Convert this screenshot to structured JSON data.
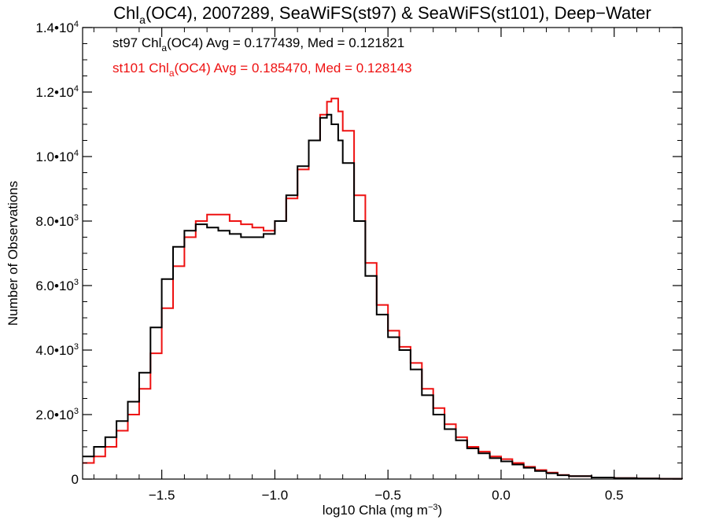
{
  "chart_data": {
    "type": "line",
    "title": {
      "pre": "Chl",
      "sub": "a",
      "post": "(OC4), 2007289, SeaWiFS(st97) & SeaWiFS(st101), Deep−Water"
    },
    "xlabel": {
      "pre": "log10 Chla (mg m",
      "sup": "−3",
      "post": ")"
    },
    "ylabel": "Number of Observations",
    "xlim": [
      -1.85,
      0.8
    ],
    "ylim": [
      0,
      14000
    ],
    "x_ticks": [
      {
        "value": -1.5,
        "label": "−1.5"
      },
      {
        "value": -1.0,
        "label": "−1.0"
      },
      {
        "value": -0.5,
        "label": "−0.5"
      },
      {
        "value": 0.0,
        "label": "0.0"
      },
      {
        "value": 0.5,
        "label": "0.5"
      }
    ],
    "y_ticks": [
      {
        "value": 0,
        "mant": "0",
        "exp": ""
      },
      {
        "value": 2000,
        "mant": "2.0•10",
        "exp": "3"
      },
      {
        "value": 4000,
        "mant": "4.0•10",
        "exp": "3"
      },
      {
        "value": 6000,
        "mant": "6.0•10",
        "exp": "3"
      },
      {
        "value": 8000,
        "mant": "8.0•10",
        "exp": "3"
      },
      {
        "value": 10000,
        "mant": "1.0•10",
        "exp": "4"
      },
      {
        "value": 12000,
        "mant": "1.2•10",
        "exp": "4"
      },
      {
        "value": 14000,
        "mant": "1.4•10",
        "exp": "4"
      }
    ],
    "legend": [
      {
        "pre": "st97 Chl",
        "sub": "a",
        "post": "(OC4) Avg = 0.177439, Med = 0.121821",
        "color": "#000000"
      },
      {
        "pre": "st101 Chl",
        "sub": "a",
        "post": "(OC4) Avg = 0.185470, Med = 0.128143",
        "color": "#ee1111"
      }
    ],
    "legend_position": "top-left",
    "grid": false,
    "series": [
      {
        "color": "#000000",
        "x": [
          -1.85,
          -1.8,
          -1.75,
          -1.7,
          -1.65,
          -1.6,
          -1.55,
          -1.5,
          -1.45,
          -1.4,
          -1.35,
          -1.3,
          -1.25,
          -1.2,
          -1.15,
          -1.1,
          -1.05,
          -1.0,
          -0.95,
          -0.9,
          -0.85,
          -0.8,
          -0.77,
          -0.75,
          -0.72,
          -0.7,
          -0.65,
          -0.6,
          -0.55,
          -0.5,
          -0.45,
          -0.4,
          -0.35,
          -0.3,
          -0.25,
          -0.2,
          -0.15,
          -0.1,
          -0.05,
          0.0,
          0.05,
          0.1,
          0.15,
          0.2,
          0.25,
          0.3,
          0.4,
          0.5,
          0.6,
          0.7,
          0.8
        ],
        "y": [
          700,
          1000,
          1300,
          1800,
          2400,
          3300,
          4700,
          6200,
          7200,
          7700,
          7900,
          7800,
          7700,
          7600,
          7500,
          7500,
          7600,
          8000,
          8800,
          9700,
          10500,
          11200,
          11300,
          11000,
          10500,
          9800,
          8000,
          6300,
          5100,
          4400,
          4000,
          3400,
          2600,
          2000,
          1550,
          1200,
          950,
          800,
          650,
          550,
          450,
          350,
          250,
          180,
          120,
          90,
          50,
          30,
          20,
          10,
          5
        ]
      },
      {
        "color": "#ee1111",
        "x": [
          -1.85,
          -1.8,
          -1.75,
          -1.7,
          -1.65,
          -1.6,
          -1.55,
          -1.5,
          -1.45,
          -1.4,
          -1.35,
          -1.3,
          -1.25,
          -1.2,
          -1.15,
          -1.1,
          -1.05,
          -1.0,
          -0.95,
          -0.9,
          -0.85,
          -0.8,
          -0.77,
          -0.75,
          -0.72,
          -0.7,
          -0.65,
          -0.6,
          -0.55,
          -0.5,
          -0.45,
          -0.4,
          -0.35,
          -0.3,
          -0.25,
          -0.2,
          -0.15,
          -0.1,
          -0.05,
          0.0,
          0.05,
          0.1,
          0.15,
          0.2,
          0.25,
          0.3,
          0.4,
          0.5,
          0.6,
          0.7,
          0.8
        ],
        "y": [
          500,
          700,
          1000,
          1500,
          2000,
          2800,
          3900,
          5300,
          6600,
          7500,
          8000,
          8200,
          8200,
          8000,
          7900,
          7800,
          7700,
          8000,
          8700,
          9600,
          10500,
          11300,
          11700,
          11800,
          11400,
          10800,
          8800,
          6700,
          5400,
          4600,
          4100,
          3600,
          2800,
          2200,
          1700,
          1300,
          1000,
          850,
          700,
          620,
          500,
          380,
          280,
          200,
          130,
          90,
          50,
          30,
          20,
          10,
          5
        ]
      }
    ]
  }
}
